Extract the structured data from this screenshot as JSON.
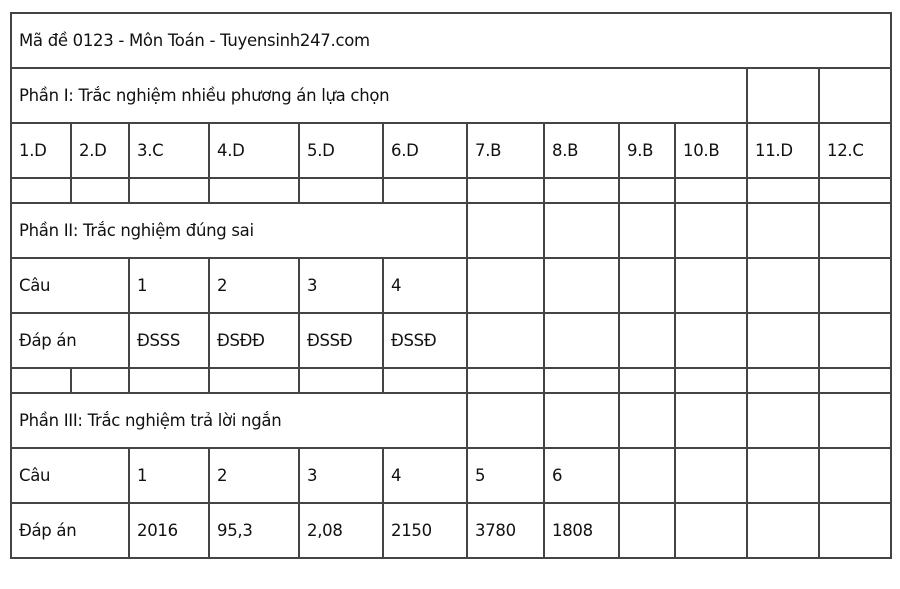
{
  "title": "Mã đề 0123 - Môn Toán - Tuyensinh247.com",
  "rows": [
    {
      "kind": "title",
      "cells": [
        {
          "text": "Mã đề 0123 - Môn Toán - Tuyensinh247.com",
          "span": 12
        }
      ]
    },
    {
      "kind": "section",
      "cells": [
        {
          "text": "Phần I: Trắc nghiệm nhiều phương án lựa chọn",
          "span": 10
        },
        {
          "text": ""
        },
        {
          "text": ""
        }
      ]
    },
    {
      "kind": "answers",
      "cells": [
        {
          "text": "1.D"
        },
        {
          "text": "2.D"
        },
        {
          "text": "3.C"
        },
        {
          "text": "4.D"
        },
        {
          "text": "5.D"
        },
        {
          "text": "6.D"
        },
        {
          "text": "7.B"
        },
        {
          "text": "8.B"
        },
        {
          "text": "9.B"
        },
        {
          "text": "10.B"
        },
        {
          "text": "11.D"
        },
        {
          "text": "12.C"
        }
      ]
    },
    {
      "kind": "thin",
      "cells": [
        {
          "text": ""
        },
        {
          "text": ""
        },
        {
          "text": ""
        },
        {
          "text": ""
        },
        {
          "text": ""
        },
        {
          "text": ""
        },
        {
          "text": ""
        },
        {
          "text": ""
        },
        {
          "text": ""
        },
        {
          "text": ""
        },
        {
          "text": ""
        },
        {
          "text": ""
        }
      ]
    },
    {
      "kind": "section",
      "cells": [
        {
          "text": "Phần II: Trắc nghiệm đúng sai",
          "span": 6
        },
        {
          "text": ""
        },
        {
          "text": ""
        },
        {
          "text": ""
        },
        {
          "text": ""
        },
        {
          "text": ""
        },
        {
          "text": ""
        }
      ]
    },
    {
      "kind": "question",
      "cells": [
        {
          "text": "Câu",
          "span": 2
        },
        {
          "text": "1"
        },
        {
          "text": "2"
        },
        {
          "text": "3"
        },
        {
          "text": "4"
        },
        {
          "text": ""
        },
        {
          "text": ""
        },
        {
          "text": ""
        },
        {
          "text": ""
        },
        {
          "text": ""
        },
        {
          "text": ""
        }
      ]
    },
    {
      "kind": "answer",
      "cells": [
        {
          "text": "Đáp án",
          "span": 2
        },
        {
          "text": "ĐSSS"
        },
        {
          "text": "ĐSĐĐ"
        },
        {
          "text": "ĐSSĐ"
        },
        {
          "text": "ĐSSĐ"
        },
        {
          "text": ""
        },
        {
          "text": ""
        },
        {
          "text": ""
        },
        {
          "text": ""
        },
        {
          "text": ""
        },
        {
          "text": ""
        }
      ]
    },
    {
      "kind": "thin",
      "cells": [
        {
          "text": ""
        },
        {
          "text": ""
        },
        {
          "text": ""
        },
        {
          "text": ""
        },
        {
          "text": ""
        },
        {
          "text": ""
        },
        {
          "text": ""
        },
        {
          "text": ""
        },
        {
          "text": ""
        },
        {
          "text": ""
        },
        {
          "text": ""
        },
        {
          "text": ""
        }
      ]
    },
    {
      "kind": "section",
      "cells": [
        {
          "text": "Phần III: Trắc nghiệm trả lời ngắn",
          "span": 6
        },
        {
          "text": ""
        },
        {
          "text": ""
        },
        {
          "text": ""
        },
        {
          "text": ""
        },
        {
          "text": ""
        },
        {
          "text": ""
        }
      ]
    },
    {
      "kind": "question",
      "cells": [
        {
          "text": "Câu",
          "span": 2
        },
        {
          "text": "1"
        },
        {
          "text": "2"
        },
        {
          "text": "3"
        },
        {
          "text": "4"
        },
        {
          "text": "5"
        },
        {
          "text": "6"
        },
        {
          "text": ""
        },
        {
          "text": ""
        },
        {
          "text": ""
        },
        {
          "text": ""
        }
      ]
    },
    {
      "kind": "answer",
      "cells": [
        {
          "text": "Đáp án",
          "span": 2
        },
        {
          "text": "2016"
        },
        {
          "text": "95,3"
        },
        {
          "text": "2,08"
        },
        {
          "text": "2150"
        },
        {
          "text": "3780"
        },
        {
          "text": "1808"
        },
        {
          "text": ""
        },
        {
          "text": ""
        },
        {
          "text": ""
        },
        {
          "text": ""
        }
      ]
    }
  ]
}
